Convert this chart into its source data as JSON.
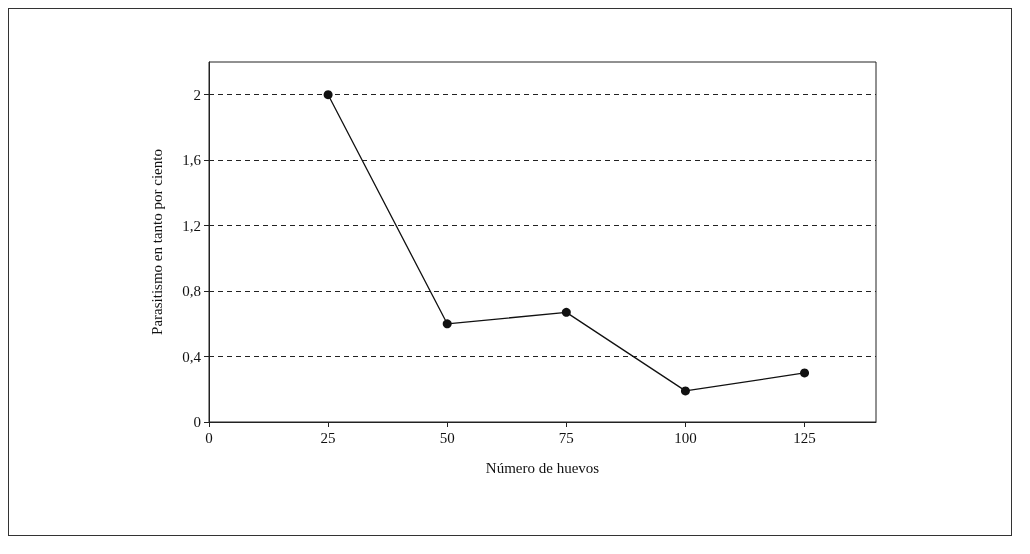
{
  "chart_data": {
    "type": "line",
    "xlabel": "Número de huevos",
    "ylabel": "Parasitismo en tanto por ciento",
    "x": [
      25,
      50,
      75,
      100,
      125
    ],
    "series": [
      {
        "color": "#111111",
        "values": [
          2.0,
          0.6,
          0.67,
          0.19,
          0.3
        ]
      }
    ],
    "xlim": [
      0,
      140
    ],
    "xticks": [
      0,
      25,
      50,
      75,
      100,
      125
    ],
    "ylim": [
      0,
      2.2
    ],
    "yticks": [
      0,
      {
        "value": 0.4,
        "label": "0,4"
      },
      {
        "value": 0.8,
        "label": "0,8"
      },
      {
        "value": 1.2,
        "label": "1,2"
      },
      {
        "value": 1.6,
        "label": "1,6"
      },
      2
    ],
    "grid": "y",
    "marker": "circle",
    "line_style": "solid"
  }
}
